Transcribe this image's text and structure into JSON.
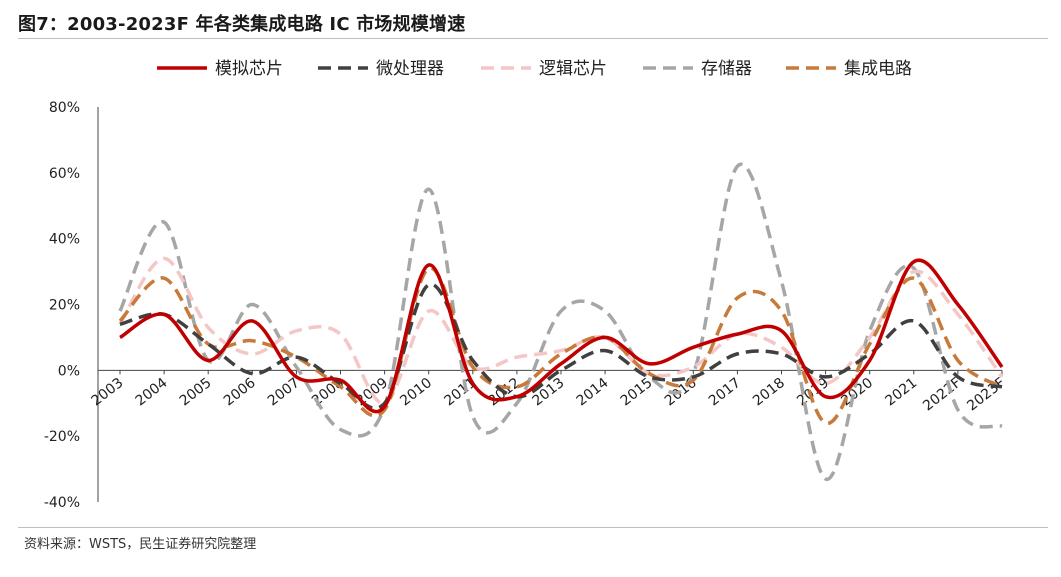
{
  "header": {
    "title": "图7：2003-2023F 年各类集成电路 IC 市场规模增速"
  },
  "footer": {
    "source": "资料来源：WSTS，民生证券研究院整理"
  },
  "chart_data": {
    "type": "line",
    "title": "图7：2003-2023F 年各类集成电路 IC 市场规模增速",
    "xlabel": "",
    "ylabel": "",
    "categories": [
      "2003",
      "2004",
      "2005",
      "2006",
      "2007",
      "2008",
      "2009",
      "2010",
      "2011",
      "2012",
      "2013",
      "2014",
      "2015",
      "2016",
      "2017",
      "2018",
      "2019",
      "2020",
      "2021",
      "2022F",
      "2023F"
    ],
    "ylim": [
      -40,
      80
    ],
    "yticks": [
      -40,
      -20,
      0,
      20,
      40,
      60,
      80
    ],
    "ytick_labels": [
      "-40%",
      "-20%",
      "0%",
      "20%",
      "40%",
      "60%",
      "80%"
    ],
    "grid": false,
    "legend_position": "top",
    "series": [
      {
        "name": "模拟芯片",
        "color": "#c00000",
        "dash": "solid",
        "values": [
          10,
          17,
          3,
          15,
          -2,
          -3,
          -11,
          32,
          -4,
          -8,
          2,
          10,
          2,
          7,
          11,
          12,
          -8,
          3,
          33,
          20,
          1
        ]
      },
      {
        "name": "微处理器",
        "color": "#404040",
        "dash": "dashed",
        "values": [
          14,
          17,
          8,
          -1,
          4,
          -4,
          -10,
          26,
          3,
          -8,
          0,
          6,
          -2,
          -2,
          5,
          5,
          -2,
          5,
          15,
          -2,
          -5
        ]
      },
      {
        "name": "逻辑芯片",
        "color": "#f4c6c6",
        "dash": "dashed",
        "values": [
          14,
          34,
          13,
          5,
          12,
          11,
          -10,
          18,
          1,
          4,
          6,
          10,
          -1,
          1,
          11,
          7,
          -4,
          10,
          30,
          17,
          -2
        ]
      },
      {
        "name": "存储器",
        "color": "#a6a6a6",
        "dash": "dashed",
        "values": [
          18,
          45,
          3,
          20,
          1,
          -18,
          -11,
          55,
          -14,
          -10,
          18,
          18,
          -2,
          -1,
          62,
          27,
          -33,
          12,
          31,
          -12,
          -17
        ]
      },
      {
        "name": "集成电路",
        "color": "#c87a3a",
        "dash": "dashed",
        "values": [
          15,
          28,
          8,
          9,
          4,
          -5,
          -12,
          31,
          1,
          -5,
          5,
          10,
          -1,
          -3,
          22,
          18,
          -16,
          8,
          28,
          3,
          -5
        ]
      }
    ]
  }
}
